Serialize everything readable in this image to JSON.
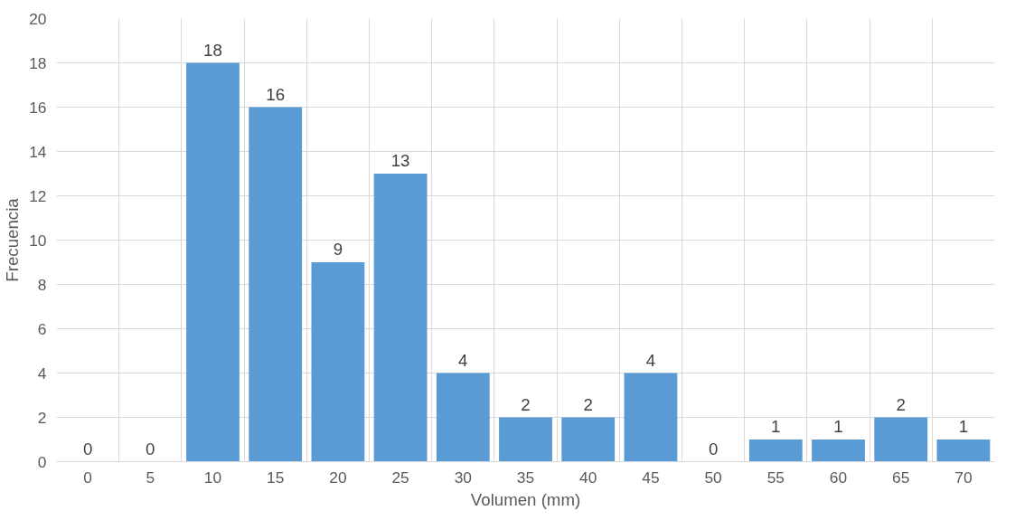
{
  "chart_data": {
    "type": "bar",
    "xlabel": "Volumen (mm)",
    "ylabel": "Frecuencia",
    "categories": [
      "0",
      "5",
      "10",
      "15",
      "20",
      "25",
      "30",
      "35",
      "40",
      "45",
      "50",
      "55",
      "60",
      "65",
      "70"
    ],
    "values": [
      0,
      0,
      18,
      16,
      9,
      13,
      4,
      2,
      2,
      4,
      0,
      1,
      1,
      2,
      1
    ],
    "color": "#5b9bd5",
    "ylim": [
      0,
      20
    ],
    "yticks": [
      0,
      2,
      4,
      6,
      8,
      10,
      12,
      14,
      16,
      18,
      20
    ],
    "grid": true,
    "data_labels": true
  }
}
